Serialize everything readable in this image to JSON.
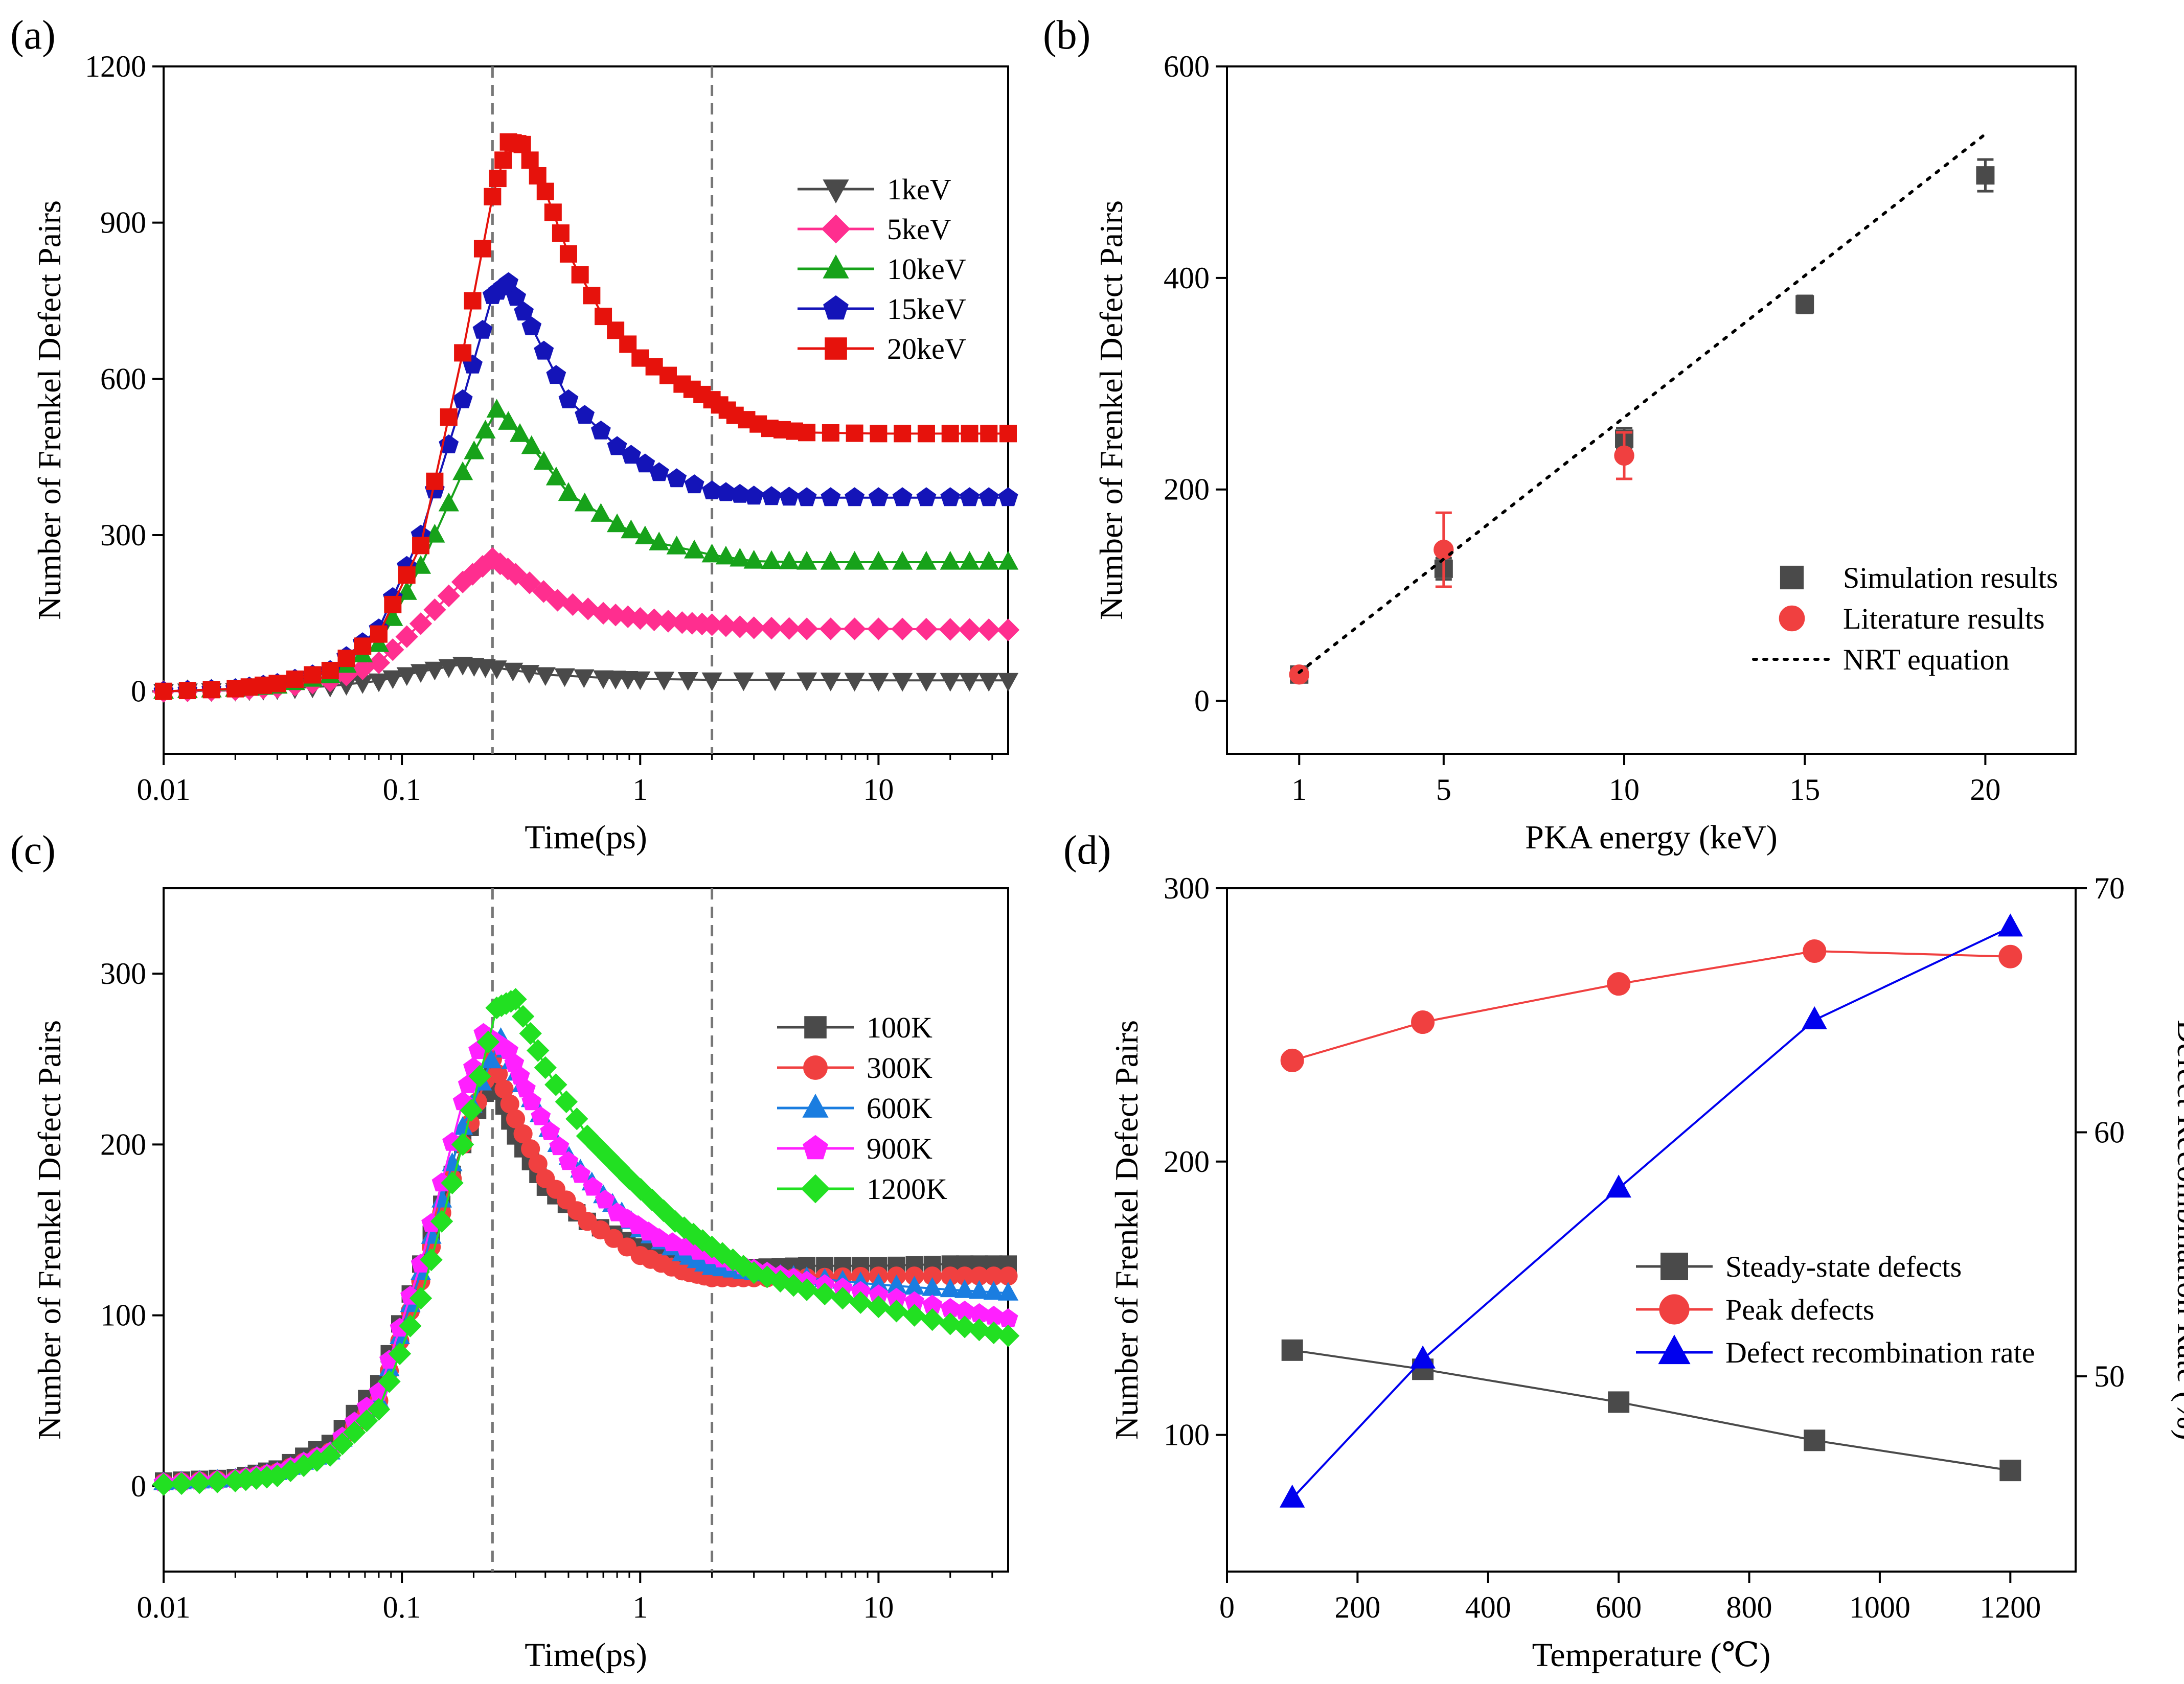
{
  "chart_data": [
    {
      "panel": "(a)",
      "type": "line",
      "xlabel": "Time(ps)",
      "ylabel": "Number of Frenkel Defect Pairs",
      "xscale": "log",
      "xlim": [
        0.01,
        35
      ],
      "ylim": [
        -120,
        1200
      ],
      "xticks": [
        0.01,
        0.1,
        1,
        10
      ],
      "xtick_labels": [
        "0.01",
        "0.1",
        "1",
        "10"
      ],
      "yticks": [
        0,
        300,
        600,
        900,
        1200
      ],
      "ytick_labels": [
        "0",
        "300",
        "600",
        "900",
        "1200"
      ],
      "vlines": [
        0.24,
        2.0
      ],
      "legend_position": "top-right",
      "series": [
        {
          "name": "1keV",
          "color": "#4a4a4a",
          "marker": "triangle-down",
          "x": [
            0.01,
            0.02,
            0.03,
            0.05,
            0.08,
            0.12,
            0.18,
            0.25,
            0.4,
            0.7,
            1.0,
            2.0,
            5.0,
            10.0,
            20.0,
            35.0
          ],
          "y": [
            0,
            2,
            5,
            10,
            20,
            38,
            52,
            45,
            32,
            26,
            24,
            22,
            22,
            21,
            21,
            21
          ]
        },
        {
          "name": "5keV",
          "color": "#ff2e8f",
          "marker": "diamond",
          "x": [
            0.01,
            0.02,
            0.03,
            0.05,
            0.08,
            0.12,
            0.18,
            0.24,
            0.3,
            0.45,
            0.7,
            1.0,
            1.5,
            2.0,
            3.0,
            5.0,
            10.0,
            20.0,
            35.0
          ],
          "y": [
            0,
            3,
            8,
            20,
            55,
            130,
            210,
            255,
            225,
            175,
            150,
            140,
            132,
            128,
            122,
            120,
            120,
            119,
            118
          ]
        },
        {
          "name": "10keV",
          "color": "#17a21a",
          "marker": "triangle-up",
          "x": [
            0.01,
            0.02,
            0.03,
            0.05,
            0.08,
            0.12,
            0.18,
            0.25,
            0.35,
            0.5,
            0.8,
            1.2,
            2.0,
            3.0,
            5.0,
            10.0,
            20.0,
            35.0
          ],
          "y": [
            0,
            4,
            10,
            30,
            90,
            240,
            420,
            540,
            470,
            380,
            320,
            285,
            262,
            250,
            248,
            248,
            248,
            248
          ]
        },
        {
          "name": "15keV",
          "color": "#1414b8",
          "marker": "pentagon",
          "x": [
            0.01,
            0.02,
            0.03,
            0.05,
            0.08,
            0.12,
            0.18,
            0.24,
            0.28,
            0.35,
            0.5,
            0.8,
            1.2,
            2.0,
            3.0,
            5.0,
            10.0,
            20.0,
            35.0
          ],
          "y": [
            0,
            5,
            15,
            40,
            120,
            300,
            560,
            760,
            785,
            700,
            560,
            470,
            420,
            385,
            375,
            372,
            372,
            372,
            372
          ]
        },
        {
          "name": "20keV",
          "color": "#e6120c",
          "marker": "square",
          "x": [
            0.01,
            0.02,
            0.03,
            0.05,
            0.08,
            0.12,
            0.18,
            0.24,
            0.28,
            0.32,
            0.4,
            0.5,
            0.7,
            1.0,
            1.5,
            2.0,
            2.5,
            3.5,
            5.0,
            10.0,
            20.0,
            35.0
          ],
          "y": [
            0,
            5,
            15,
            40,
            110,
            280,
            650,
            950,
            1055,
            1050,
            960,
            840,
            720,
            640,
            590,
            560,
            530,
            505,
            497,
            495,
            495,
            495
          ]
        }
      ]
    },
    {
      "panel": "(b)",
      "type": "scatter",
      "xlabel": "PKA energy (keV)",
      "ylabel": "Number of Frenkel Defect Pairs",
      "xlim": [
        -1,
        22.5
      ],
      "ylim": [
        -50,
        600
      ],
      "xticks": [
        1,
        5,
        10,
        15,
        20
      ],
      "xtick_labels": [
        "1",
        "5",
        "10",
        "15",
        "20"
      ],
      "yticks": [
        0,
        200,
        400,
        600
      ],
      "ytick_labels": [
        "0",
        "200",
        "400",
        "600"
      ],
      "legend_position": "bottom-right",
      "series": [
        {
          "name": "Simulation results",
          "color": "#4a4a4a",
          "marker": "square",
          "x": [
            1,
            5,
            10,
            15,
            20
          ],
          "y": [
            25,
            125,
            248,
            375,
            497
          ],
          "err": [
            4,
            10,
            10,
            8,
            15
          ]
        },
        {
          "name": "Literature results",
          "color": "#f04040",
          "marker": "circle",
          "x": [
            1,
            5,
            10
          ],
          "y": [
            25,
            143,
            232
          ],
          "err": [
            4,
            35,
            22
          ]
        },
        {
          "name": "NRT equation",
          "color": "#000000",
          "marker": "dotted-line",
          "x": [
            1,
            20
          ],
          "y": [
            27,
            536
          ]
        }
      ]
    },
    {
      "panel": "(c)",
      "type": "line",
      "xlabel": "Time(ps)",
      "ylabel": "Number of Frenkel Defect Pairs",
      "xscale": "log",
      "xlim": [
        0.01,
        35
      ],
      "ylim": [
        -50,
        350
      ],
      "xticks": [
        0.01,
        0.1,
        1,
        10
      ],
      "xtick_labels": [
        "0.01",
        "0.1",
        "1",
        "10"
      ],
      "yticks": [
        0,
        100,
        200,
        300
      ],
      "ytick_labels": [
        "0",
        "100",
        "200",
        "300"
      ],
      "vlines": [
        0.24,
        2.0
      ],
      "legend_position": "top-right",
      "series": [
        {
          "name": "100K",
          "color": "#4a4a4a",
          "marker": "square",
          "x": [
            0.01,
            0.02,
            0.03,
            0.05,
            0.08,
            0.12,
            0.18,
            0.24,
            0.3,
            0.4,
            0.6,
            1.0,
            1.5,
            2.0,
            3.0,
            5.0,
            10.0,
            20.0,
            35.0
          ],
          "y": [
            3,
            5,
            10,
            25,
            60,
            130,
            200,
            240,
            205,
            175,
            155,
            140,
            132,
            128,
            128,
            129,
            129,
            130,
            130
          ]
        },
        {
          "name": "300K",
          "color": "#f04040",
          "marker": "circle",
          "x": [
            0.01,
            0.02,
            0.03,
            0.05,
            0.08,
            0.12,
            0.18,
            0.24,
            0.3,
            0.4,
            0.6,
            1.0,
            1.5,
            2.0,
            3.0,
            5.0,
            10.0,
            20.0,
            35.0
          ],
          "y": [
            2,
            4,
            8,
            20,
            50,
            120,
            200,
            250,
            215,
            180,
            155,
            135,
            126,
            122,
            122,
            122,
            123,
            123,
            123
          ]
        },
        {
          "name": "600K",
          "color": "#1a7de0",
          "marker": "triangle-up",
          "x": [
            0.01,
            0.02,
            0.03,
            0.05,
            0.08,
            0.12,
            0.18,
            0.26,
            0.32,
            0.45,
            0.7,
            1.0,
            1.5,
            2.0,
            3.0,
            5.0,
            10.0,
            20.0,
            35.0
          ],
          "y": [
            2,
            4,
            8,
            20,
            50,
            125,
            210,
            262,
            235,
            200,
            170,
            150,
            136,
            128,
            125,
            122,
            118,
            115,
            113
          ]
        },
        {
          "name": "900K",
          "color": "#ff20ff",
          "marker": "pentagon",
          "x": [
            0.01,
            0.02,
            0.03,
            0.05,
            0.08,
            0.12,
            0.18,
            0.22,
            0.28,
            0.35,
            0.5,
            0.8,
            1.2,
            2.0,
            3.0,
            5.0,
            10.0,
            20.0,
            35.0
          ],
          "y": [
            2,
            4,
            8,
            20,
            55,
            130,
            225,
            265,
            255,
            225,
            190,
            160,
            145,
            135,
            127,
            120,
            112,
            104,
            98
          ]
        },
        {
          "name": "1200K",
          "color": "#22e022",
          "marker": "diamond",
          "x": [
            0.01,
            0.02,
            0.03,
            0.05,
            0.08,
            0.12,
            0.18,
            0.25,
            0.3,
            0.4,
            0.6,
            0.9,
            1.4,
            2.0,
            3.0,
            5.0,
            10.0,
            20.0,
            35.0
          ],
          "y": [
            1,
            3,
            6,
            18,
            45,
            110,
            200,
            280,
            285,
            245,
            205,
            180,
            155,
            140,
            125,
            115,
            105,
            95,
            88
          ]
        }
      ]
    },
    {
      "panel": "(d)",
      "type": "line",
      "xlabel": "Temperature (℃)",
      "ylabel": "Number of Frenkel Defect Pairs",
      "y2label": "Defect Recombination Rate  (%)",
      "xlim": [
        0,
        1300
      ],
      "ylim": [
        50,
        300
      ],
      "y2lim": [
        42,
        70
      ],
      "xticks": [
        0,
        200,
        400,
        600,
        800,
        1000,
        1200
      ],
      "xtick_labels": [
        "0",
        "200",
        "400",
        "600",
        "800",
        "1000",
        "1200"
      ],
      "yticks": [
        100,
        200,
        300
      ],
      "ytick_labels": [
        "100",
        "200",
        "300"
      ],
      "y2ticks": [
        50,
        60,
        70
      ],
      "y2tick_labels": [
        "50",
        "60",
        "70"
      ],
      "legend_position": "bottom-right",
      "series": [
        {
          "name": "Steady-state defects",
          "color": "#4a4a4a",
          "marker": "square",
          "axis": "left",
          "x": [
            100,
            300,
            600,
            900,
            1200
          ],
          "y": [
            131,
            124,
            112,
            98,
            87
          ]
        },
        {
          "name": "Peak defects",
          "color": "#f04040",
          "marker": "circle",
          "axis": "left",
          "x": [
            100,
            300,
            600,
            900,
            1200
          ],
          "y": [
            237,
            251,
            265,
            277,
            275
          ]
        },
        {
          "name": "Defect recombination rate",
          "color": "#0000ee",
          "marker": "triangle-up",
          "axis": "right",
          "x": [
            100,
            300,
            600,
            900,
            1200
          ],
          "y": [
            45,
            50.7,
            57.7,
            64.6,
            68.4
          ]
        }
      ]
    }
  ]
}
